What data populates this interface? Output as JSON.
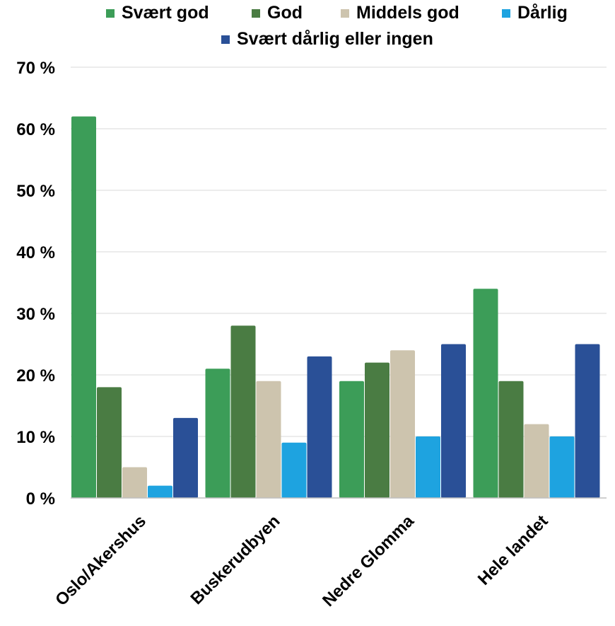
{
  "chart_data": {
    "type": "bar",
    "categories": [
      "Oslo/Akershus",
      "Buskerudbyen",
      "Nedre Glomma",
      "Hele landet"
    ],
    "series": [
      {
        "name": "Svært god",
        "color": "#3c9d58",
        "values": [
          62,
          21,
          19,
          34
        ]
      },
      {
        "name": "God",
        "color": "#4a7c43",
        "values": [
          18,
          28,
          22,
          19
        ]
      },
      {
        "name": "Middels god",
        "color": "#cdc4ae",
        "values": [
          5,
          19,
          24,
          12
        ]
      },
      {
        "name": "Dårlig",
        "color": "#1ea3e0",
        "values": [
          2,
          9,
          10,
          10
        ]
      },
      {
        "name": "Svært dårlig eller ingen",
        "color": "#2a5097",
        "values": [
          13,
          23,
          25,
          25
        ]
      }
    ],
    "y_ticks": [
      "0 %",
      "10 %",
      "20 %",
      "30 %",
      "40 %",
      "50 %",
      "60 %",
      "70 %"
    ],
    "ylim": [
      0,
      70
    ],
    "grid": true,
    "legend_position": "top"
  }
}
